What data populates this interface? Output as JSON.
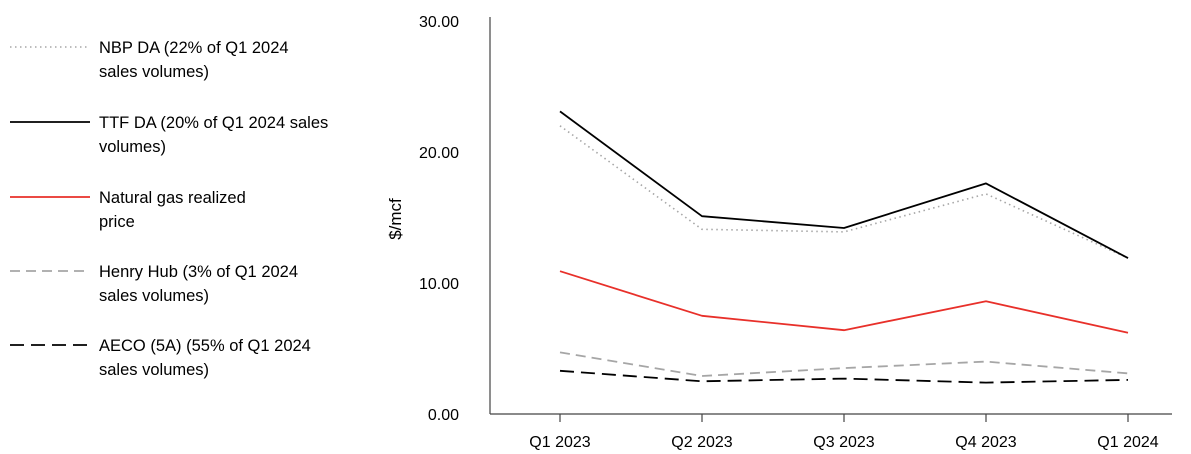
{
  "chart_data": {
    "type": "line",
    "categories": [
      "Q1 2023",
      "Q2 2023",
      "Q3 2023",
      "Q4 2023",
      "Q1 2024"
    ],
    "ylabel": "$/mcf",
    "ylim": [
      0,
      30
    ],
    "yticks": [
      "0.00",
      "10.00",
      "20.00",
      "30.00"
    ],
    "grid": false,
    "legend_position": "left",
    "series": [
      {
        "name": "NBP DA (22% of Q1 2024 sales volumes)",
        "color": "#a6a6a6",
        "style": "dotted",
        "values": [
          22.0,
          14.1,
          13.9,
          16.8,
          11.9
        ]
      },
      {
        "name": "TTF DA (20% of Q1 2024 sales volumes)",
        "color": "#000000",
        "style": "solid",
        "values": [
          23.1,
          15.1,
          14.2,
          17.6,
          11.9
        ]
      },
      {
        "name": "Natural gas realized price",
        "color": "#e8302a",
        "style": "solid",
        "values": [
          10.9,
          7.5,
          6.4,
          8.6,
          6.2
        ]
      },
      {
        "name": "Henry Hub (3% of Q1 2024 sales volumes)",
        "color": "#a6a6a6",
        "style": "dashed",
        "values": [
          4.7,
          2.9,
          3.5,
          4.0,
          3.1
        ]
      },
      {
        "name": "AECO (5A) (55% of Q1 2024 sales volumes)",
        "color": "#000000",
        "style": "dashed",
        "values": [
          3.3,
          2.5,
          2.7,
          2.4,
          2.6
        ]
      }
    ]
  }
}
